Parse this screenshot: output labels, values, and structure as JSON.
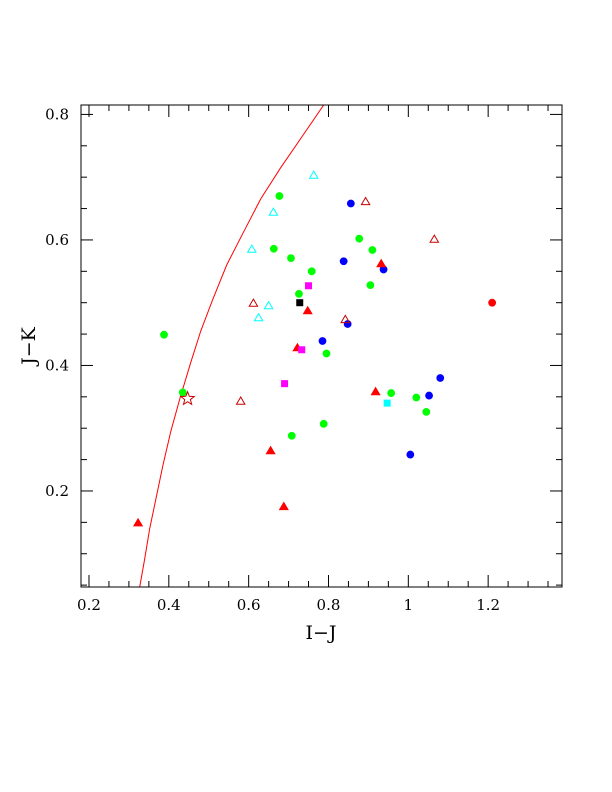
{
  "chart_data": {
    "type": "scatter",
    "xlabel": "I−J",
    "ylabel": "J−K",
    "xlim": [
      0.18,
      1.385
    ],
    "ylim": [
      0.047,
      0.815
    ],
    "x_ticks": [
      {
        "v": 0.2,
        "label": "0.2"
      },
      {
        "v": 0.4,
        "label": "0.4"
      },
      {
        "v": 0.6,
        "label": "0.6"
      },
      {
        "v": 0.8,
        "label": "0.8"
      },
      {
        "v": 1.0,
        "label": "1"
      },
      {
        "v": 1.2,
        "label": "1.2"
      }
    ],
    "y_ticks": [
      {
        "v": 0.2,
        "label": "0.2"
      },
      {
        "v": 0.4,
        "label": "0.4"
      },
      {
        "v": 0.6,
        "label": "0.6"
      },
      {
        "v": 0.8,
        "label": "0.8"
      }
    ],
    "x_minor_step": 0.05,
    "y_minor_step": 0.05,
    "grid": false,
    "colors": {
      "red": "#ff0000",
      "darkred": "#c80000",
      "green": "#00ff00",
      "blue": "#0000ff",
      "cyan": "#00ffff",
      "magenta": "#ff00ff",
      "black": "#000000"
    },
    "curve": {
      "color": "#ff0000",
      "points": [
        [
          0.327,
          0.047
        ],
        [
          0.339,
          0.09
        ],
        [
          0.352,
          0.14
        ],
        [
          0.367,
          0.185
        ],
        [
          0.385,
          0.24
        ],
        [
          0.405,
          0.295
        ],
        [
          0.429,
          0.35
        ],
        [
          0.455,
          0.405
        ],
        [
          0.48,
          0.455
        ],
        [
          0.51,
          0.505
        ],
        [
          0.545,
          0.56
        ],
        [
          0.585,
          0.61
        ],
        [
          0.63,
          0.665
        ],
        [
          0.68,
          0.715
        ],
        [
          0.745,
          0.775
        ],
        [
          0.788,
          0.815
        ]
      ]
    },
    "series": [
      {
        "marker": "circle",
        "filled": true,
        "color": "#00ff00",
        "points": [
          [
            0.388,
            0.449
          ],
          [
            0.435,
            0.357
          ],
          [
            0.677,
            0.67
          ],
          [
            0.663,
            0.586
          ],
          [
            0.706,
            0.571
          ],
          [
            0.726,
            0.514
          ],
          [
            0.758,
            0.55
          ],
          [
            0.708,
            0.288
          ],
          [
            0.795,
            0.419
          ],
          [
            0.788,
            0.307
          ],
          [
            0.877,
            0.602
          ],
          [
            0.91,
            0.584
          ],
          [
            0.905,
            0.528
          ],
          [
            0.957,
            0.356
          ],
          [
            1.02,
            0.349
          ],
          [
            1.045,
            0.326
          ]
        ]
      },
      {
        "marker": "circle",
        "filled": true,
        "color": "#0000ff",
        "points": [
          [
            0.856,
            0.658
          ],
          [
            0.838,
            0.566
          ],
          [
            0.938,
            0.553
          ],
          [
            0.848,
            0.466
          ],
          [
            0.785,
            0.439
          ],
          [
            1.08,
            0.38
          ],
          [
            1.052,
            0.352
          ],
          [
            1.005,
            0.258
          ]
        ]
      },
      {
        "marker": "circle",
        "filled": true,
        "color": "#ff0000",
        "points": [
          [
            1.21,
            0.5
          ]
        ]
      },
      {
        "marker": "triangle",
        "filled": true,
        "color": "#ff0000",
        "points": [
          [
            0.323,
            0.149
          ],
          [
            0.655,
            0.264
          ],
          [
            0.688,
            0.175
          ],
          [
            0.722,
            0.428
          ],
          [
            0.748,
            0.487
          ],
          [
            0.918,
            0.358
          ],
          [
            0.932,
            0.562
          ]
        ]
      },
      {
        "marker": "triangle",
        "filled": false,
        "color": "#c80000",
        "points": [
          [
            0.58,
            0.343
          ],
          [
            0.612,
            0.499
          ],
          [
            0.893,
            0.661
          ],
          [
            1.065,
            0.601
          ],
          [
            0.842,
            0.473
          ]
        ]
      },
      {
        "marker": "triangle",
        "filled": false,
        "color": "#00ffff",
        "points": [
          [
            0.608,
            0.585
          ],
          [
            0.625,
            0.476
          ],
          [
            0.65,
            0.495
          ],
          [
            0.662,
            0.644
          ],
          [
            0.763,
            0.703
          ]
        ]
      },
      {
        "marker": "square",
        "filled": true,
        "color": "#ff00ff",
        "points": [
          [
            0.75,
            0.527
          ],
          [
            0.733,
            0.425
          ],
          [
            0.69,
            0.371
          ]
        ]
      },
      {
        "marker": "square",
        "filled": true,
        "color": "#00ffff",
        "points": [
          [
            0.947,
            0.34
          ]
        ]
      },
      {
        "marker": "square",
        "filled": true,
        "color": "#000000",
        "points": [
          [
            0.728,
            0.5
          ]
        ]
      },
      {
        "marker": "star",
        "filled": false,
        "color": "#c80000",
        "points": [
          [
            0.447,
            0.347
          ]
        ]
      }
    ]
  }
}
